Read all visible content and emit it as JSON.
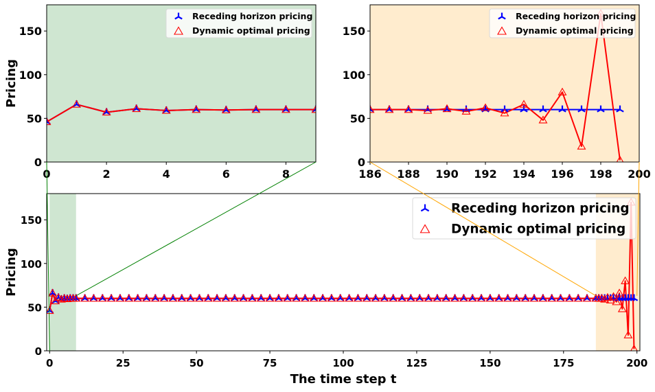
{
  "chart_data": [
    {
      "id": "inset_start",
      "type": "line",
      "title": "",
      "xlabel": "",
      "ylabel": "Pricing",
      "xlim": [
        0,
        9
      ],
      "ylim": [
        0,
        180
      ],
      "xticks": [
        0,
        2,
        4,
        6,
        8
      ],
      "yticks": [
        0,
        50,
        100,
        150
      ],
      "background": "#cfe6d1",
      "grid": false,
      "legend": {
        "placement": "top-right",
        "entries": [
          "Receding horizon pricing",
          "Dynamic optimal pricing"
        ]
      },
      "x": [
        0,
        1,
        2,
        3,
        4,
        5,
        6,
        7,
        8,
        9
      ],
      "series": [
        {
          "name": "Receding horizon pricing",
          "color": "#0000ff",
          "marker": "tri",
          "values": [
            46,
            66,
            57,
            61,
            59,
            60,
            59.5,
            60,
            60,
            60
          ]
        },
        {
          "name": "Dynamic optimal pricing",
          "color": "#ff0000",
          "marker": "triangle-open",
          "values": [
            46,
            66,
            57,
            61,
            59,
            60,
            59.5,
            60,
            60,
            60
          ]
        }
      ]
    },
    {
      "id": "inset_end",
      "type": "line",
      "title": "",
      "xlabel": "",
      "ylabel": "",
      "xlim": [
        186,
        200
      ],
      "ylim": [
        0,
        180
      ],
      "xticks": [
        186,
        188,
        190,
        192,
        194,
        196,
        198,
        200
      ],
      "yticks": [
        0,
        50,
        100,
        150
      ],
      "background": "#ffecce",
      "grid": false,
      "legend": {
        "placement": "top-right",
        "entries": [
          "Receding horizon pricing",
          "Dynamic optimal pricing"
        ]
      },
      "x": [
        186,
        187,
        188,
        189,
        190,
        191,
        192,
        193,
        194,
        195,
        196,
        197,
        198,
        199
      ],
      "series": [
        {
          "name": "Receding horizon pricing",
          "color": "#0000ff",
          "marker": "tri",
          "values": [
            60,
            60,
            60,
            60,
            60,
            60,
            60,
            60,
            60,
            60,
            60,
            60,
            60,
            60
          ]
        },
        {
          "name": "Dynamic optimal pricing",
          "color": "#ff0000",
          "marker": "triangle-open",
          "values": [
            60,
            60,
            60,
            59,
            61,
            58,
            62,
            56,
            66,
            48,
            80,
            18,
            170,
            2
          ]
        }
      ]
    },
    {
      "id": "main",
      "type": "line",
      "title": "",
      "xlabel": "The time step t",
      "ylabel": "Pricing",
      "xlim": [
        -1,
        201
      ],
      "ylim": [
        0,
        180
      ],
      "xticks": [
        0,
        25,
        50,
        75,
        100,
        125,
        150,
        175,
        200
      ],
      "yticks": [
        0,
        50,
        100,
        150
      ],
      "background": "#ffffff",
      "grid": false,
      "highlight_regions": [
        {
          "x0": 0,
          "x1": 9,
          "color": "#cfe6d1"
        },
        {
          "x0": 186,
          "x1": 201,
          "color": "#ffecce"
        }
      ],
      "legend": {
        "placement": "top-right",
        "entries": [
          "Receding horizon pricing",
          "Dynamic optimal pricing"
        ]
      },
      "series": [
        {
          "name": "Receding horizon pricing",
          "color": "#0000ff",
          "marker": "tri",
          "x": [
            0,
            1,
            2,
            3,
            4,
            5,
            6,
            7,
            8,
            9,
            12,
            15,
            18,
            21,
            24,
            27,
            30,
            33,
            36,
            39,
            42,
            45,
            48,
            51,
            54,
            57,
            60,
            63,
            66,
            69,
            72,
            75,
            78,
            81,
            84,
            87,
            90,
            93,
            96,
            99,
            102,
            105,
            108,
            111,
            114,
            117,
            120,
            123,
            126,
            129,
            132,
            135,
            138,
            141,
            144,
            147,
            150,
            153,
            156,
            159,
            162,
            165,
            168,
            171,
            174,
            177,
            180,
            183,
            186,
            187,
            188,
            189,
            190,
            191,
            192,
            193,
            194,
            195,
            196,
            197,
            198,
            199
          ],
          "values": [
            46,
            66,
            57,
            61,
            59,
            60,
            59.5,
            60,
            60,
            60,
            60,
            60,
            60,
            60,
            60,
            60,
            60,
            60,
            60,
            60,
            60,
            60,
            60,
            60,
            60,
            60,
            60,
            60,
            60,
            60,
            60,
            60,
            60,
            60,
            60,
            60,
            60,
            60,
            60,
            60,
            60,
            60,
            60,
            60,
            60,
            60,
            60,
            60,
            60,
            60,
            60,
            60,
            60,
            60,
            60,
            60,
            60,
            60,
            60,
            60,
            60,
            60,
            60,
            60,
            60,
            60,
            60,
            60,
            60,
            60,
            60,
            60,
            60,
            60,
            60,
            60,
            60,
            60,
            60,
            60,
            60,
            60
          ]
        },
        {
          "name": "Dynamic optimal pricing",
          "color": "#ff0000",
          "marker": "triangle-open",
          "x": [
            0,
            1,
            2,
            3,
            4,
            5,
            6,
            7,
            8,
            9,
            12,
            15,
            18,
            21,
            24,
            27,
            30,
            33,
            36,
            39,
            42,
            45,
            48,
            51,
            54,
            57,
            60,
            63,
            66,
            69,
            72,
            75,
            78,
            81,
            84,
            87,
            90,
            93,
            96,
            99,
            102,
            105,
            108,
            111,
            114,
            117,
            120,
            123,
            126,
            129,
            132,
            135,
            138,
            141,
            144,
            147,
            150,
            153,
            156,
            159,
            162,
            165,
            168,
            171,
            174,
            177,
            180,
            183,
            186,
            187,
            188,
            189,
            190,
            191,
            192,
            193,
            194,
            195,
            196,
            197,
            198,
            199
          ],
          "values": [
            46,
            66,
            57,
            61,
            59,
            60,
            59.5,
            60,
            60,
            60,
            60,
            60,
            60,
            60,
            60,
            60,
            60,
            60,
            60,
            60,
            60,
            60,
            60,
            60,
            60,
            60,
            60,
            60,
            60,
            60,
            60,
            60,
            60,
            60,
            60,
            60,
            60,
            60,
            60,
            60,
            60,
            60,
            60,
            60,
            60,
            60,
            60,
            60,
            60,
            60,
            60,
            60,
            60,
            60,
            60,
            60,
            60,
            60,
            60,
            60,
            60,
            60,
            60,
            60,
            60,
            60,
            60,
            60,
            60,
            60,
            60,
            59,
            61,
            58,
            62,
            56,
            66,
            48,
            80,
            18,
            170,
            2
          ]
        }
      ]
    }
  ]
}
